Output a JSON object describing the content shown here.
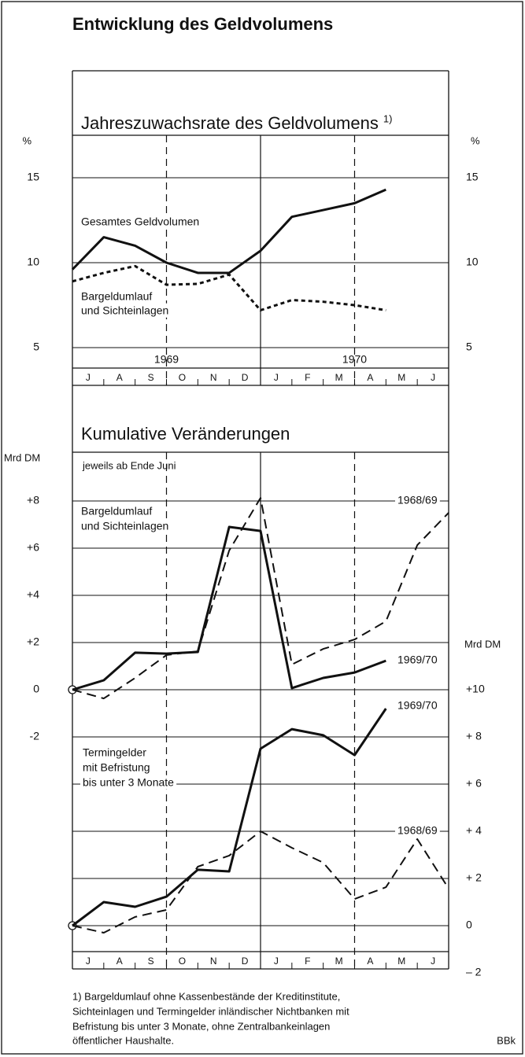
{
  "title": "Entwicklung des Geldvolumens",
  "chart_data": [
    {
      "type": "line",
      "title": "Jahreszuwachsrate des Geldvolumens",
      "title_note": "1)",
      "y_label": "%",
      "y2_label": "%",
      "ylim": [
        3.75,
        17.5
      ],
      "yticks": [
        5,
        10,
        15
      ],
      "y2lim": [
        3.75,
        17.5
      ],
      "y2ticks": [
        5,
        10,
        15
      ],
      "grid": true,
      "y2grid": false,
      "xlim": [
        0,
        12
      ],
      "x": [
        0,
        1,
        2,
        3,
        4,
        5,
        6,
        7,
        8,
        9,
        10,
        11,
        12
      ],
      "categories": [
        "J",
        "A",
        "S",
        "O",
        "N",
        "D",
        "J",
        "F",
        "M",
        "A",
        "M",
        "J"
      ],
      "years": [
        {
          "value": 3,
          "label": "1969"
        },
        {
          "value": 9,
          "label": "1970"
        }
      ],
      "vlines": [
        {
          "value": 3,
          "style": "dashed"
        },
        {
          "value": 6,
          "style": "solid"
        },
        {
          "value": 9,
          "style": "dashed"
        }
      ],
      "series": [
        {
          "name": [
            "Gesamtes Geldvolumen"
          ],
          "color": "#111111",
          "style": "solid",
          "values": [
            9.6,
            11.5,
            11.0,
            10.0,
            9.4,
            9.4,
            10.7,
            12.7,
            13.1,
            13.5,
            14.3,
            null,
            null
          ]
        },
        {
          "name": [
            "Bargeldumlauf",
            "und Sichteinlagen"
          ],
          "color": "#111111",
          "style": "dotted",
          "values": [
            8.9,
            9.4,
            9.8,
            8.7,
            8.75,
            9.3,
            7.2,
            7.8,
            7.7,
            7.5,
            7.2,
            null,
            null
          ]
        }
      ]
    },
    {
      "type": "line",
      "title": "Kumulative Veränderungen",
      "subtitle": "jeweils ab Ende Juni",
      "y_label": "Mrd DM",
      "y2_label": "Mrd DM",
      "ylim": [
        -12,
        12
      ],
      "yticks": [
        {
          "value": 8,
          "label": "+8"
        },
        {
          "value": 6,
          "label": "+6"
        },
        {
          "value": 4,
          "label": "+4"
        },
        {
          "value": 2,
          "label": "+2"
        },
        0,
        -2
      ],
      "y2lim": [
        -2,
        22
      ],
      "y2ticks": [
        {
          "value": 10,
          "label": "+10"
        },
        {
          "value": 8,
          "label": "+ 8"
        },
        {
          "value": 6,
          "label": "+ 6"
        },
        {
          "value": 4,
          "label": "+ 4"
        },
        {
          "value": 2,
          "label": "+ 2"
        },
        0,
        {
          "value": -2,
          "label": "– 2"
        }
      ],
      "grid": true,
      "y2grid": true,
      "xlim": [
        0,
        12
      ],
      "x": [
        0,
        1,
        2,
        3,
        4,
        5,
        6,
        7,
        8,
        9,
        10,
        11,
        12
      ],
      "categories": [
        "J",
        "A",
        "S",
        "O",
        "N",
        "D",
        "J",
        "F",
        "M",
        "A",
        "M",
        "J"
      ],
      "vlines": [
        {
          "value": 3,
          "style": "dashed"
        },
        {
          "value": 6,
          "style": "solid"
        },
        {
          "value": 9,
          "style": "dashed"
        }
      ],
      "annotations": [
        [
          "Bargeldumlauf",
          "und Sichteinlagen"
        ],
        [
          "Termingelder",
          "mit Befristung",
          "bis unter 3 Monate"
        ]
      ],
      "series": [
        {
          "name": [
            "1969/70"
          ],
          "color": "#111111",
          "style": "solid",
          "axis": "y",
          "values": [
            0,
            0.4,
            1.57,
            1.53,
            1.6,
            6.9,
            6.73,
            0.07,
            0.5,
            0.73,
            1.23,
            null,
            null
          ]
        },
        {
          "name": [
            "1968/69"
          ],
          "color": "#111111",
          "style": "dashed",
          "axis": "y",
          "values": [
            0,
            -0.37,
            0.5,
            1.47,
            1.63,
            5.9,
            8.13,
            1.07,
            1.73,
            2.13,
            2.9,
            6.13,
            7.5
          ]
        },
        {
          "name": [
            "1969/70"
          ],
          "color": "#111111",
          "style": "solid",
          "axis": "y2",
          "values": [
            0,
            1.0,
            0.8,
            1.23,
            2.37,
            2.3,
            7.5,
            8.33,
            8.07,
            7.23,
            9.2,
            null,
            null
          ]
        },
        {
          "name": [
            "1968/69"
          ],
          "color": "#111111",
          "style": "dashed",
          "axis": "y2",
          "values": [
            0,
            -0.3,
            0.37,
            0.67,
            2.5,
            2.97,
            4.0,
            3.3,
            2.67,
            1.13,
            1.63,
            3.67,
            1.57
          ]
        }
      ]
    }
  ],
  "footnote": [
    "1) Bargeldumlauf ohne Kassenbestände der Kreditinstitute,",
    "Sichteinlagen und Termingelder inländischer Nichtbanken mit",
    "Befristung bis unter 3 Monate, ohne Zentralbankeinlagen",
    "öffentlicher Haushalte."
  ],
  "source": "BBk"
}
